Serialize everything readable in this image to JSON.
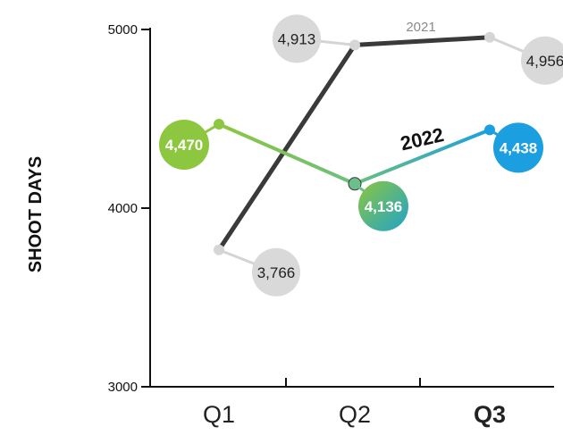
{
  "chart_data": {
    "type": "line",
    "ylabel": "SHOOT DAYS",
    "ylim": [
      3000,
      5000
    ],
    "yticks": [
      "3000",
      "4000",
      "5000"
    ],
    "categories": [
      "Q1",
      "Q2",
      "Q3"
    ],
    "highlighted_category": "Q3",
    "grid": false,
    "series": [
      {
        "name": "2021",
        "values": [
          3766,
          4913,
          4956
        ],
        "value_labels": [
          "3,766",
          "4,913",
          "4,956"
        ],
        "color": "#3a3a3a",
        "marker_color": "#d6d6d6",
        "bubble_color": "#d9d9d9"
      },
      {
        "name": "2022",
        "values": [
          4470,
          4136,
          4438
        ],
        "value_labels": [
          "4,470",
          "4,136",
          "4,438"
        ],
        "colors": [
          "#8dc63f",
          "#6bbf8a",
          "#1b9fe0"
        ]
      }
    ]
  }
}
